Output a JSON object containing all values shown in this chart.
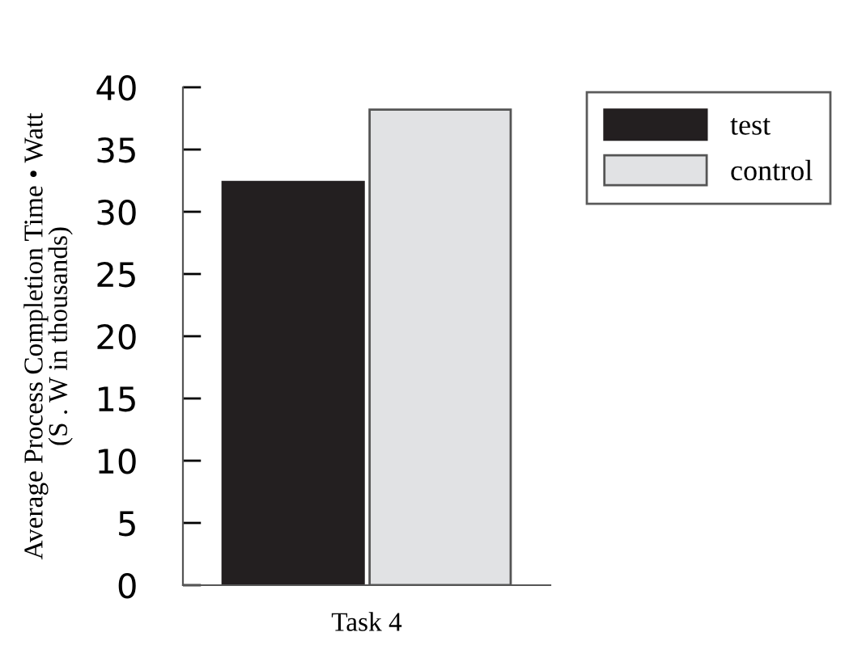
{
  "chart_data": {
    "type": "bar",
    "ylabel": "Average Process Completion Time • Watt\n(S . W in thousands)",
    "categories": [
      "Task 4"
    ],
    "series": [
      {
        "name": "test",
        "color": "#231f20",
        "values": [
          32.4
        ]
      },
      {
        "name": "control",
        "color": "#e1e2e4",
        "values": [
          38.2
        ]
      }
    ],
    "ylim": [
      0,
      40
    ],
    "yticks": [
      0,
      5,
      10,
      15,
      20,
      25,
      30,
      35,
      40
    ],
    "legend": "top right",
    "grid": false
  }
}
